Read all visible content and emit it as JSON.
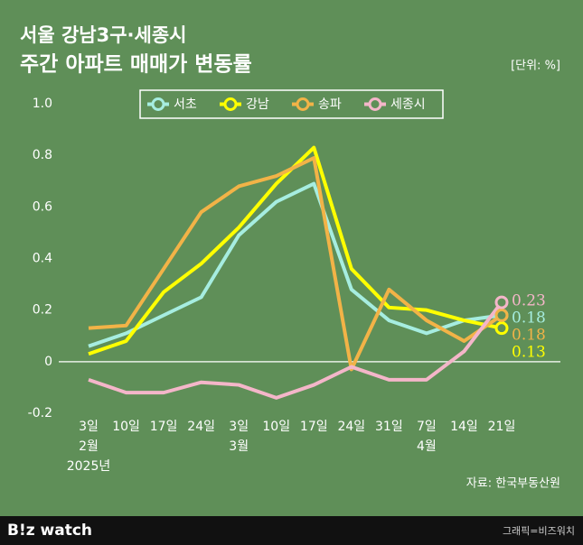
{
  "chart_data": {
    "type": "line",
    "title": "서울 강남3구·세종시",
    "subtitle": "주간 아파트 매매가 변동률",
    "unit": "[단위: %]",
    "source": "자료: 한국부동산원",
    "categories": [
      [
        "3일",
        "2월",
        "2025년"
      ],
      [
        "10일"
      ],
      [
        "17일"
      ],
      [
        "24일"
      ],
      [
        "3일",
        "3월"
      ],
      [
        "10일"
      ],
      [
        "17일"
      ],
      [
        "24일"
      ],
      [
        "31일"
      ],
      [
        "7일",
        "4월"
      ],
      [
        "14일"
      ],
      [
        "21일"
      ]
    ],
    "series": [
      {
        "name": "서초",
        "color": "#a6ede0",
        "values": [
          0.06,
          0.11,
          0.18,
          0.25,
          0.49,
          0.62,
          0.69,
          0.28,
          0.16,
          0.11,
          0.16,
          0.18
        ],
        "value_labels": [
          null,
          null,
          null,
          null,
          null,
          null,
          null,
          null,
          null,
          null,
          null,
          "0.18"
        ]
      },
      {
        "name": "강남",
        "color": "#ffff00",
        "values": [
          0.03,
          0.08,
          0.27,
          0.38,
          0.52,
          0.69,
          0.83,
          0.36,
          0.21,
          0.2,
          0.16,
          0.13
        ],
        "value_labels": [
          null,
          null,
          null,
          null,
          null,
          null,
          null,
          null,
          null,
          null,
          null,
          "0.13"
        ]
      },
      {
        "name": "송파",
        "color": "#f2b347",
        "values": [
          0.13,
          0.14,
          0.36,
          0.58,
          0.68,
          0.72,
          0.79,
          -0.03,
          0.28,
          0.16,
          0.08,
          0.18
        ],
        "value_labels": [
          null,
          null,
          null,
          null,
          null,
          null,
          null,
          null,
          null,
          null,
          null,
          "0.18"
        ]
      },
      {
        "name": "세종시",
        "color": "#f4b6c9",
        "values": [
          -0.07,
          -0.12,
          -0.12,
          -0.08,
          -0.09,
          -0.14,
          -0.09,
          -0.02,
          -0.07,
          -0.07,
          0.04,
          0.23
        ],
        "value_labels": [
          null,
          null,
          null,
          null,
          null,
          null,
          null,
          null,
          null,
          null,
          null,
          "0.23"
        ]
      }
    ],
    "ylim": [
      -0.2,
      1.0
    ],
    "yticks": [
      -0.2,
      0,
      0.2,
      0.4,
      0.6,
      0.8,
      {
        "value": 1,
        "label": "1.0"
      }
    ],
    "zero_line": true
  },
  "footer": {
    "logo": "B!z watch",
    "credit": "그래픽=비즈워치"
  }
}
